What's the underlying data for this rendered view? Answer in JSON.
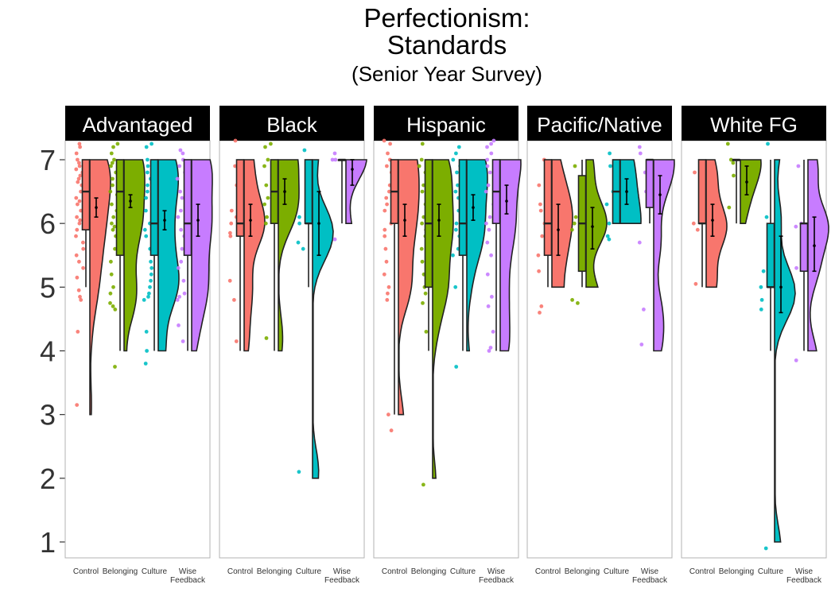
{
  "chart_data": {
    "type": "raincloud",
    "title": "Perfectionism:\nStandards",
    "subtitle": "(Senior Year Survey)",
    "xlabel": "",
    "ylabel": "",
    "ylim": [
      0.6,
      7.3
    ],
    "yticks": [
      1,
      2,
      3,
      4,
      5,
      6,
      7
    ],
    "categories": [
      "Control",
      "Belonging",
      "Culture",
      "Wise Feedback"
    ],
    "category_colors": [
      "#F8766D",
      "#7CAE00",
      "#00BFC4",
      "#C77CFF"
    ],
    "grid": false,
    "legend": "none",
    "facets": [
      {
        "label": "Advantaged",
        "groups": [
          {
            "category": "Control",
            "box": {
              "min": 5,
              "q1": 5.9,
              "median": 6.5,
              "q3": 7,
              "max": 7
            },
            "mean": 6.25,
            "ci": [
              6.1,
              6.4
            ],
            "violin_range": [
              3,
              7
            ],
            "points": [
              7.25,
              7.2,
              7.1,
              7.0,
              6.95,
              6.9,
              6.85,
              6.8,
              6.75,
              6.7,
              6.65,
              6.6,
              6.5,
              6.4,
              6.35,
              6.3,
              6.2,
              6.1,
              6.05,
              6.0,
              5.9,
              5.8,
              5.7,
              5.6,
              5.5,
              5.4,
              5.3,
              5.15,
              4.95,
              4.85,
              4.8,
              4.3,
              3.15
            ]
          },
          {
            "category": "Belonging",
            "box": {
              "min": 4,
              "q1": 5.5,
              "median": 6.5,
              "q3": 7,
              "max": 7
            },
            "mean": 6.35,
            "ci": [
              6.25,
              6.45
            ],
            "violin_range": [
              4,
              7
            ],
            "points": [
              7.25,
              7.2,
              7.1,
              7.0,
              6.95,
              6.9,
              6.8,
              6.7,
              6.6,
              6.5,
              6.45,
              6.3,
              6.2,
              6.1,
              6.0,
              5.95,
              5.9,
              5.8,
              5.6,
              5.4,
              5.2,
              5.0,
              4.9,
              4.75,
              4.7,
              4.65,
              3.75
            ]
          },
          {
            "category": "Culture",
            "box": {
              "min": 4,
              "q1": 5.5,
              "median": 6,
              "q3": 7,
              "max": 7
            },
            "mean": 6.05,
            "ci": [
              5.9,
              6.2
            ],
            "violin_range": [
              4,
              7
            ],
            "points": [
              7.25,
              7.2,
              7.0,
              6.9,
              6.8,
              6.7,
              6.6,
              6.5,
              6.4,
              6.2,
              6.0,
              5.9,
              5.8,
              5.6,
              5.4,
              5.3,
              5.2,
              5.1,
              5.0,
              4.9,
              4.85,
              4.8,
              4.3,
              4.0,
              3.8
            ]
          },
          {
            "category": "Wise Feedback",
            "box": {
              "min": 4,
              "q1": 5.5,
              "median": 6,
              "q3": 7,
              "max": 7
            },
            "mean": 6.05,
            "ci": [
              5.8,
              6.3
            ],
            "violin_range": [
              4,
              7
            ],
            "points": [
              7.15,
              7.1,
              7.0,
              6.9,
              6.8,
              6.7,
              6.5,
              6.4,
              6.2,
              6.1,
              6.0,
              5.9,
              5.8,
              5.6,
              5.4,
              5.3,
              5.1,
              4.9,
              4.85,
              4.8,
              4.4,
              4.15
            ]
          }
        ]
      },
      {
        "label": "Black",
        "groups": [
          {
            "category": "Control",
            "box": {
              "min": 4,
              "q1": 5.8,
              "median": 6,
              "q3": 7,
              "max": 7
            },
            "mean": 6.05,
            "ci": [
              5.8,
              6.3
            ],
            "violin_range": [
              4,
              7
            ],
            "points": [
              7.3,
              6.9,
              6.6,
              6.2,
              6.1,
              6.0,
              5.85,
              5.8,
              5.1,
              4.8,
              4.15
            ]
          },
          {
            "category": "Belonging",
            "box": {
              "min": 4,
              "q1": 6,
              "median": 6.5,
              "q3": 7,
              "max": 7
            },
            "mean": 6.5,
            "ci": [
              6.3,
              6.7
            ],
            "violin_range": [
              4,
              7
            ],
            "points": [
              7.25,
              7.2,
              7.0,
              6.9,
              6.6,
              6.4,
              6.3,
              6.1,
              6.0,
              4.2
            ]
          },
          {
            "category": "Culture",
            "box": {
              "min": 5,
              "q1": 6,
              "median": 6,
              "q3": 7,
              "max": 7
            },
            "mean": 6.0,
            "ci": [
              5.5,
              6.5
            ],
            "violin_range": [
              2,
              7
            ],
            "points": [
              7.15,
              6.1,
              6.0,
              5.7,
              5.6,
              2.1
            ]
          },
          {
            "category": "Wise Feedback",
            "box": {
              "min": 6,
              "q1": 7,
              "median": 7,
              "q3": 7,
              "max": 7
            },
            "mean": 6.85,
            "ci": [
              6.6,
              7.0
            ],
            "violin_range": [
              6,
              7
            ],
            "points": [
              7.1,
              7.0,
              7.0,
              5.75
            ]
          }
        ]
      },
      {
        "label": "Hispanic",
        "groups": [
          {
            "category": "Control",
            "box": {
              "min": 3,
              "q1": 6,
              "median": 6.5,
              "q3": 7,
              "max": 7
            },
            "mean": 6.05,
            "ci": [
              5.8,
              6.3
            ],
            "violin_range": [
              3,
              7
            ],
            "points": [
              7.3,
              7.25,
              7.1,
              7.0,
              6.9,
              6.8,
              6.6,
              6.5,
              6.4,
              6.3,
              6.2,
              6.0,
              5.9,
              5.8,
              5.6,
              5.4,
              5.2,
              5.0,
              4.9,
              4.8,
              3.0,
              2.75
            ]
          },
          {
            "category": "Belonging",
            "box": {
              "min": 4,
              "q1": 5,
              "median": 6,
              "q3": 7,
              "max": 7
            },
            "mean": 6.05,
            "ci": [
              5.8,
              6.3
            ],
            "violin_range": [
              2,
              7
            ],
            "points": [
              7.25,
              7.0,
              6.9,
              6.8,
              6.6,
              6.5,
              6.3,
              6.1,
              6.0,
              5.9,
              5.8,
              5.6,
              5.4,
              5.2,
              5.0,
              4.9,
              4.75,
              4.3,
              1.9
            ]
          },
          {
            "category": "Culture",
            "box": {
              "min": 4,
              "q1": 5.5,
              "median": 6,
              "q3": 7,
              "max": 7
            },
            "mean": 6.25,
            "ci": [
              6.05,
              6.45
            ],
            "violin_range": [
              4,
              7
            ],
            "points": [
              7.2,
              7.1,
              7.0,
              6.9,
              6.8,
              6.6,
              6.5,
              6.4,
              6.2,
              6.0,
              5.9,
              5.8,
              5.6,
              5.5,
              5.0,
              3.75
            ]
          },
          {
            "category": "Wise Feedback",
            "box": {
              "min": 4,
              "q1": 6,
              "median": 6.5,
              "q3": 7,
              "max": 7
            },
            "mean": 6.35,
            "ci": [
              6.15,
              6.6
            ],
            "violin_range": [
              4,
              7
            ],
            "points": [
              7.3,
              7.25,
              7.2,
              7.1,
              7.0,
              6.9,
              6.8,
              6.6,
              6.5,
              6.3,
              6.1,
              6.0,
              5.9,
              5.7,
              5.5,
              5.2,
              4.85,
              4.7,
              4.3,
              4.05,
              4.0
            ]
          }
        ]
      },
      {
        "label": "Pacific/Native",
        "groups": [
          {
            "category": "Control",
            "box": {
              "min": 5,
              "q1": 5.5,
              "median": 6,
              "q3": 7,
              "max": 7
            },
            "mean": 5.9,
            "ci": [
              5.5,
              6.3
            ],
            "violin_range": [
              5,
              7
            ],
            "points": [
              7.0,
              6.6,
              6.3,
              6.2,
              6.0,
              5.8,
              5.5,
              5.25,
              4.7,
              4.6
            ]
          },
          {
            "category": "Belonging",
            "box": {
              "min": 5,
              "q1": 5.25,
              "median": 6,
              "q3": 6.75,
              "max": 7
            },
            "mean": 5.95,
            "ci": [
              5.6,
              6.25
            ],
            "violin_range": [
              5,
              7
            ],
            "points": [
              6.9,
              6.1,
              6.0,
              5.9,
              4.8,
              4.75
            ]
          },
          {
            "category": "Culture",
            "box": {
              "min": 6,
              "q1": 6,
              "median": 6.5,
              "q3": 7,
              "max": 7
            },
            "mean": 6.5,
            "ci": [
              6.3,
              6.7
            ],
            "violin_range": [
              6,
              7
            ],
            "points": [
              7.1,
              6.9,
              6.5,
              6.3,
              6.0,
              5.8,
              5.75
            ]
          },
          {
            "category": "Wise Feedback",
            "box": {
              "min": 6,
              "q1": 6.25,
              "median": 7,
              "q3": 7,
              "max": 7
            },
            "mean": 6.45,
            "ci": [
              6.15,
              6.75
            ],
            "violin_range": [
              4,
              7
            ],
            "points": [
              7.2,
              7.1,
              6.8,
              6.5,
              5.7,
              4.65,
              4.1
            ]
          }
        ]
      },
      {
        "label": "White FG",
        "groups": [
          {
            "category": "Control",
            "box": {
              "min": 5,
              "q1": 6,
              "median": 6,
              "q3": 7,
              "max": 7
            },
            "mean": 6.05,
            "ci": [
              5.8,
              6.3
            ],
            "violin_range": [
              5,
              7
            ],
            "points": [
              6.8,
              6.0,
              5.9,
              5.05
            ]
          },
          {
            "category": "Belonging",
            "box": {
              "min": 6,
              "q1": 7,
              "median": 7,
              "q3": 7,
              "max": 7
            },
            "mean": 6.65,
            "ci": [
              6.45,
              6.9
            ],
            "violin_range": [
              6,
              7
            ],
            "points": [
              7.25,
              7.0,
              6.95,
              6.75,
              6.25
            ]
          },
          {
            "category": "Culture",
            "box": {
              "min": 4,
              "q1": 5,
              "median": 5,
              "q3": 6,
              "max": 7
            },
            "mean": 5.0,
            "ci": [
              4.6,
              5.8
            ],
            "violin_range": [
              1,
              7
            ],
            "points": [
              7.25,
              6.1,
              5.25,
              5.0,
              4.8,
              4.65,
              0.9
            ]
          },
          {
            "category": "Wise Feedback",
            "box": {
              "min": 4,
              "q1": 5.25,
              "median": 6,
              "q3": 6,
              "max": 7
            },
            "mean": 5.65,
            "ci": [
              5.25,
              6.1
            ],
            "violin_range": [
              4,
              7
            ],
            "points": [
              6.9,
              6.0,
              5.95,
              5.3,
              3.85
            ]
          }
        ]
      }
    ]
  }
}
